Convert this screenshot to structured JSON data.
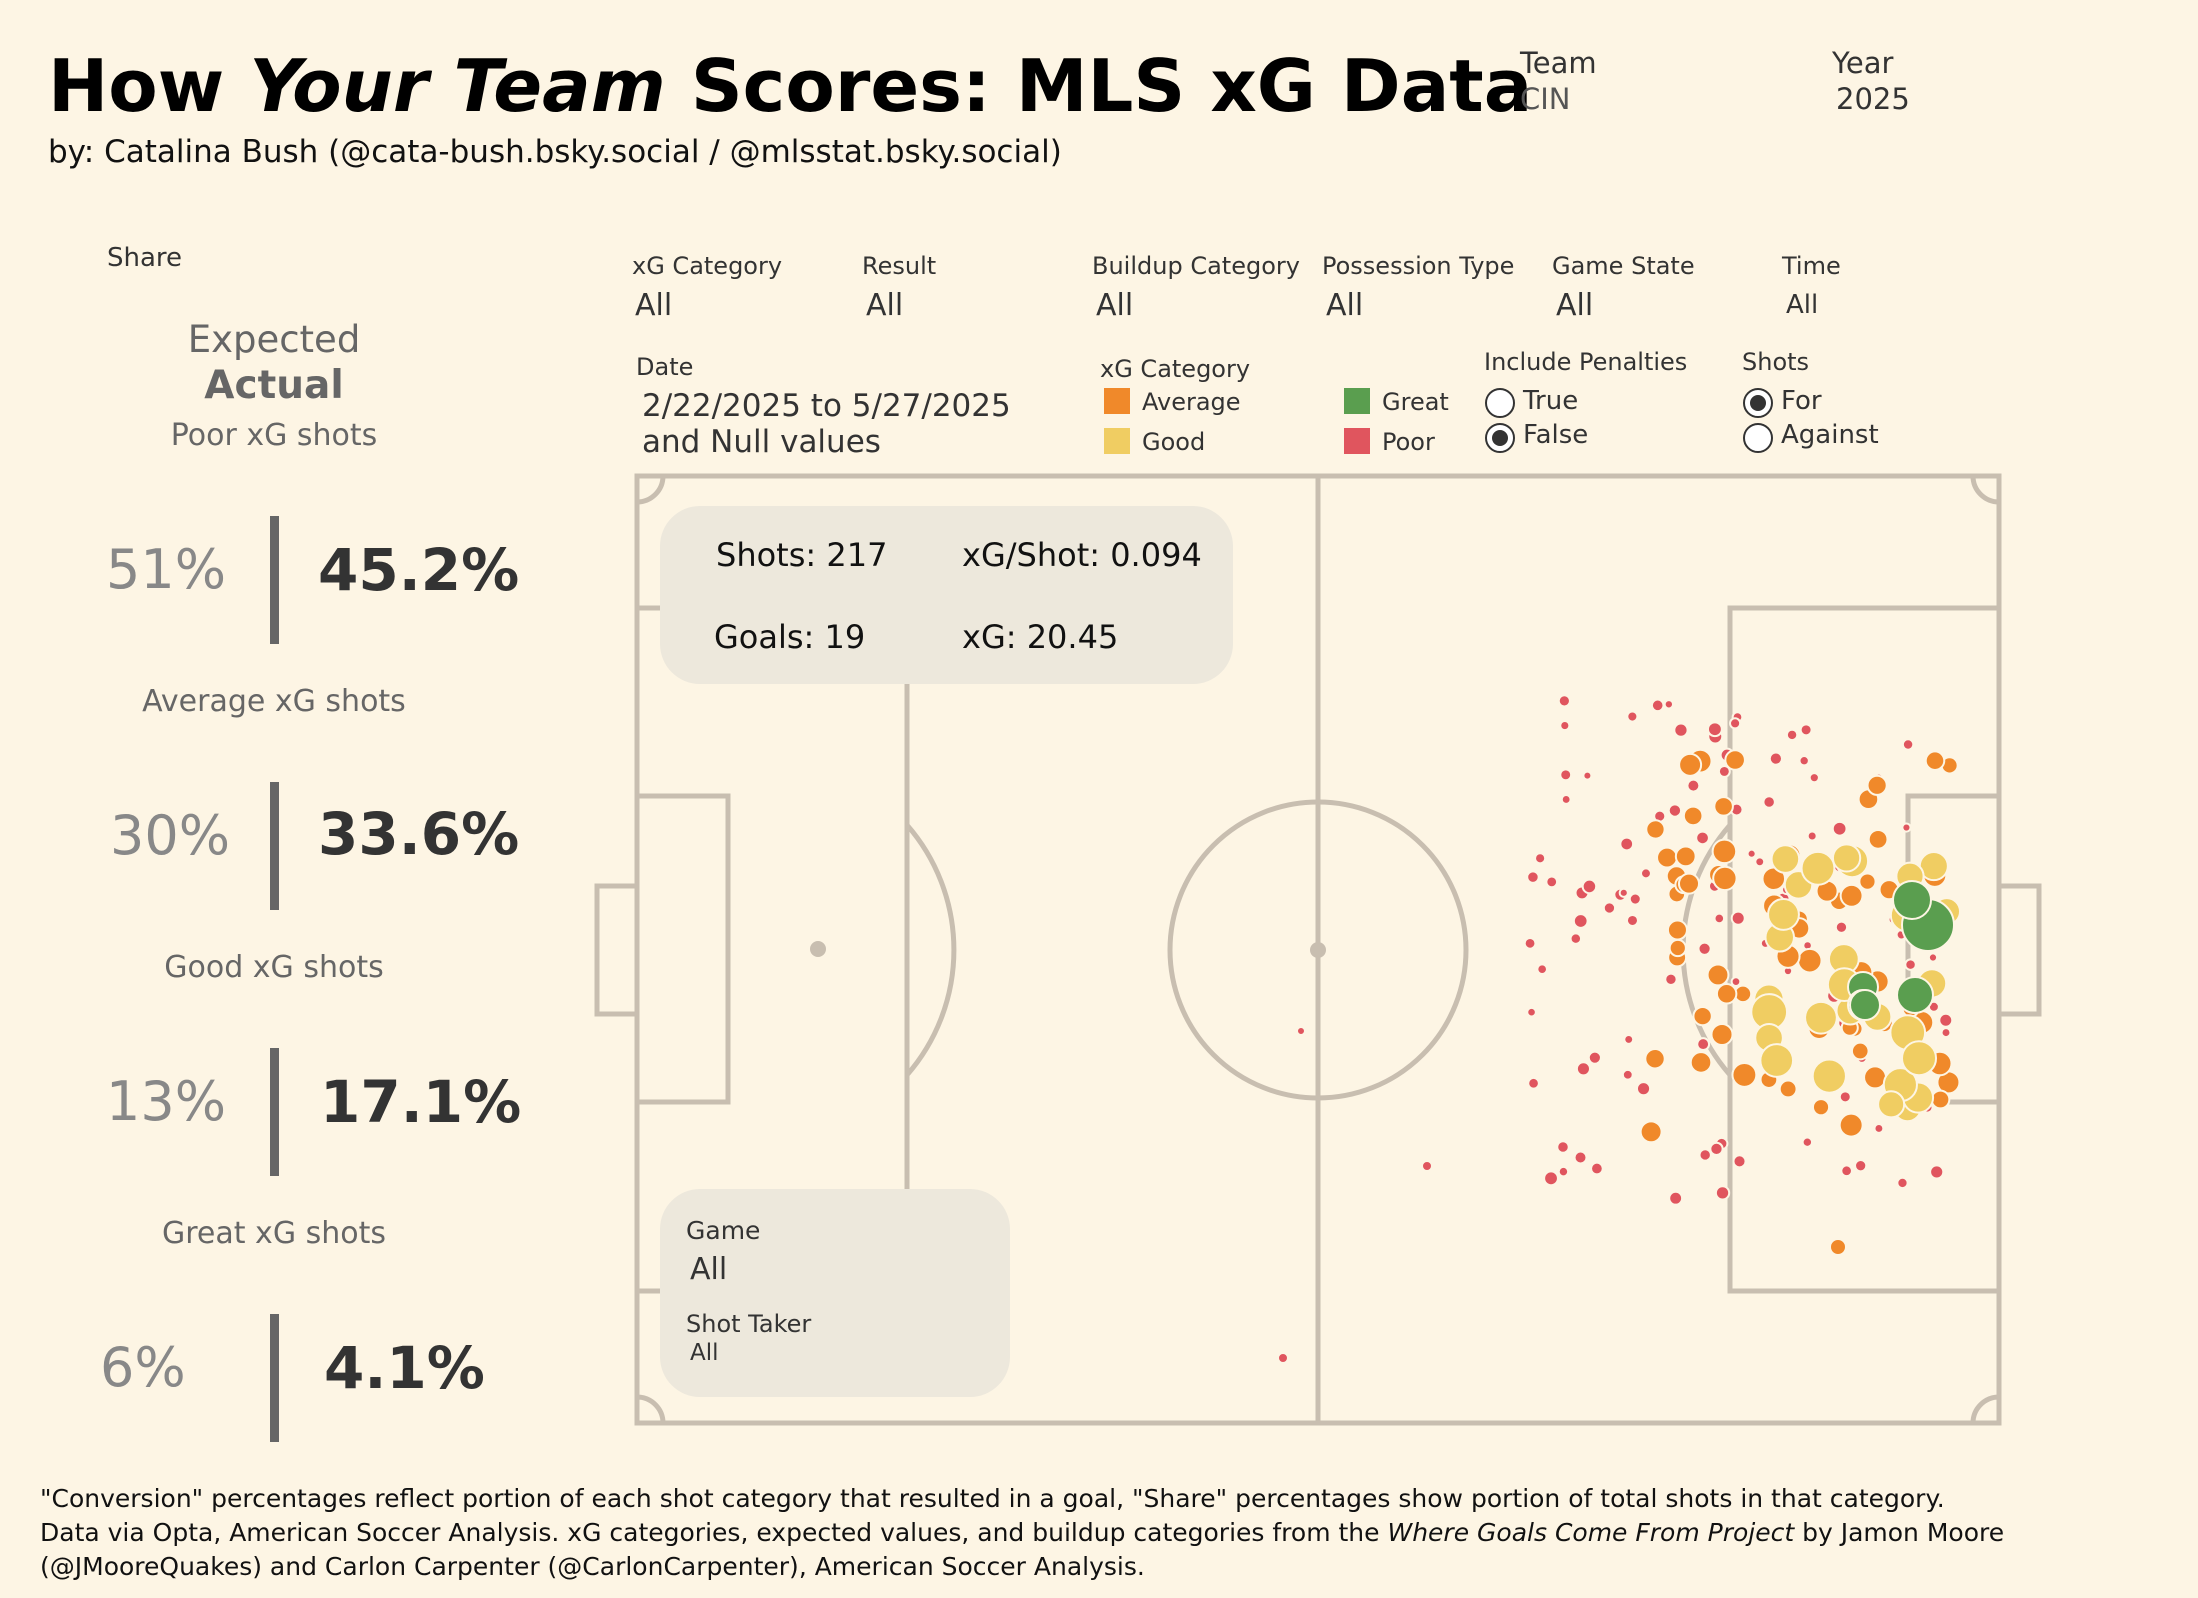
{
  "header": {
    "title_part1": "How ",
    "title_italic": "Your Team",
    "title_part2": "  Scores: MLS xG Data",
    "byline": "by: Catalina Bush (@cata-bush.bsky.social / @mlsstat.bsky.social)",
    "team_label": "Team",
    "team_value": "CIN",
    "year_label": "Year",
    "year_value": "2025"
  },
  "left_panel": {
    "share_label": "Share",
    "legend_expected": "Expected",
    "legend_actual": "Actual",
    "categories": [
      {
        "label": "Poor xG shots",
        "share": "51%",
        "actual": "45.2%"
      },
      {
        "label": "Average xG shots",
        "share": "30%",
        "actual": "33.6%"
      },
      {
        "label": "Good xG shots",
        "share": "13%",
        "actual": "17.1%"
      },
      {
        "label": "Great xG shots",
        "share": "6%",
        "actual": "4.1%"
      }
    ]
  },
  "filters": {
    "xg_category": {
      "label": "xG Category",
      "value": "All"
    },
    "result": {
      "label": "Result",
      "value": "All"
    },
    "buildup": {
      "label": "Buildup Category",
      "value": "All"
    },
    "possession": {
      "label": "Possession Type",
      "value": "All"
    },
    "game_state": {
      "label": "Game State",
      "value": "All"
    },
    "time": {
      "label": "Time",
      "value": "All"
    },
    "date": {
      "label": "Date",
      "value_line1": "2/22/2025 to 5/27/2025",
      "value_line2": "and Null values"
    }
  },
  "legend": {
    "title": "xG Category",
    "items": [
      {
        "label": "Average",
        "color": "#f0892a"
      },
      {
        "label": "Good",
        "color": "#f0cd62"
      },
      {
        "label": "Great",
        "color": "#5a9e4f"
      },
      {
        "label": "Poor",
        "color": "#e0555e"
      }
    ]
  },
  "include_penalties": {
    "label": "Include Penalties",
    "options": [
      "True",
      "False"
    ],
    "selected": "False"
  },
  "shots_toggle": {
    "label": "Shots",
    "options": [
      "For",
      "Against"
    ],
    "selected": "For"
  },
  "stats": {
    "shots": "Shots: 217",
    "xg_per_shot": "xG/Shot: 0.094",
    "goals": "Goals: 19",
    "xg": "xG: 20.45"
  },
  "game_filter": {
    "label": "Game",
    "value": "All"
  },
  "shot_taker_filter": {
    "label": "Shot Taker",
    "value": "All"
  },
  "footer": {
    "line1": "\"Conversion\" percentages reflect portion of each shot category that resulted in a goal, \"Share\" percentages show portion of total shots in that category.",
    "line2_pre": "Data via Opta, American Soccer Analysis. xG categories, expected values, and buildup categories from the ",
    "line2_italic": "Where Goals Come From Project",
    "line2_post": " by Jamon Moore (@JMooreQuakes) and Carlon Carpenter (@CarlonCarpenter), American Soccer Analysis."
  }
}
